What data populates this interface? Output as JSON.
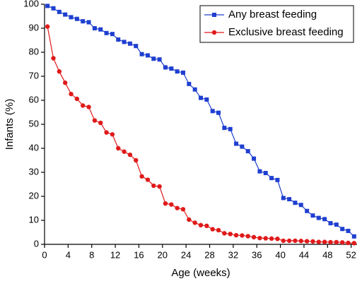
{
  "chart_data": {
    "type": "line",
    "xlabel": "Age (weeks)",
    "ylabel": "Infants (%)",
    "x": [
      0.5,
      1.5,
      2.5,
      3.5,
      4.5,
      5.5,
      6.5,
      7.5,
      8.5,
      9.5,
      10.5,
      11.5,
      12.5,
      13.5,
      14.5,
      15.5,
      16.5,
      17.5,
      18.5,
      19.5,
      20.5,
      21.5,
      22.5,
      23.5,
      24.5,
      25.5,
      26.5,
      27.5,
      28.5,
      29.5,
      30.5,
      31.5,
      32.5,
      33.5,
      34.5,
      35.5,
      36.5,
      37.5,
      38.5,
      39.5,
      40.5,
      41.5,
      42.5,
      43.5,
      44.5,
      45.5,
      46.5,
      47.5,
      48.5,
      49.5,
      50.5,
      51.5,
      52.5
    ],
    "series": [
      {
        "name": "Any breast feeding",
        "color": "#1f3fd0",
        "marker": "square",
        "values": [
          99.3,
          98.3,
          96.8,
          95.7,
          94.6,
          93.9,
          92.9,
          92.5,
          90,
          89.5,
          88,
          87.6,
          85.3,
          84.3,
          83.6,
          82.6,
          79.2,
          78.7,
          77.3,
          77,
          73.7,
          73.2,
          72,
          71.5,
          66.8,
          64.5,
          61,
          60.3,
          55.5,
          54.8,
          48.5,
          48,
          41.9,
          40.7,
          38.8,
          35.7,
          30.4,
          29.7,
          27.6,
          26.8,
          19.3,
          18.8,
          17.3,
          16.4,
          13.9,
          12,
          11,
          10.5,
          8.8,
          8.2,
          6.4,
          5.6,
          3.3
        ]
      },
      {
        "name": "Exclusive breast feeding",
        "color": "#e01a1a",
        "marker": "circle",
        "values": [
          90.7,
          77.5,
          72,
          67.3,
          62.6,
          60.6,
          57.8,
          57.2,
          51.6,
          50.6,
          46.6,
          45.8,
          40,
          38.6,
          37.3,
          35,
          28.3,
          26.9,
          24.4,
          24.1,
          17,
          16.6,
          15.1,
          14.6,
          10.3,
          9,
          8,
          7.7,
          6.3,
          5.9,
          4.6,
          4.3,
          3.8,
          3.7,
          3.4,
          3,
          2.6,
          2.5,
          2.4,
          2.3,
          1.5,
          1.5,
          1.5,
          1.4,
          1.3,
          1.2,
          1,
          1,
          0.9,
          0.9,
          0.8,
          0.6,
          0.5
        ]
      }
    ],
    "xlim": [
      0,
      53
    ],
    "xticks": [
      0,
      4,
      8,
      12,
      16,
      20,
      24,
      28,
      32,
      36,
      40,
      44,
      48,
      52
    ],
    "ylim": [
      0,
      100
    ],
    "yticks": [
      0,
      10,
      20,
      30,
      40,
      50,
      60,
      70,
      80,
      90,
      100
    ],
    "grid": false,
    "legend": "upper right"
  }
}
